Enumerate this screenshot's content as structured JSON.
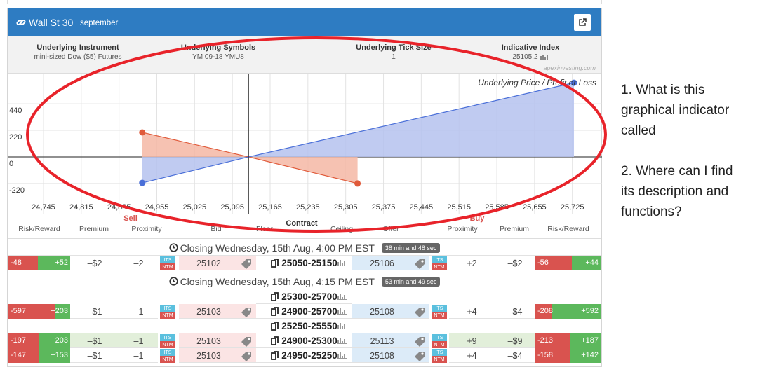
{
  "header": {
    "title": "Wall St 30",
    "subtitle": "september"
  },
  "info": [
    {
      "label": "Underlying Instrument",
      "value": "mini-sized Dow ($5) Futures"
    },
    {
      "label": "Underlying Symbols",
      "value": "YM 09-18 YMU8"
    },
    {
      "label": "Underlying Tick Size",
      "value": "1"
    },
    {
      "label": "Indicative Index",
      "value": "25105.2"
    }
  ],
  "watermark": "apexinvesting.com",
  "chart_data": {
    "type": "line",
    "title": "Underlying Price / Profit or Loss",
    "series": [
      {
        "color": "#e05a3a",
        "fill": "#f4b7a4",
        "x": [
          24928,
          25125,
          25327
        ],
        "values": [
          203,
          0,
          -220
        ]
      },
      {
        "color": "#4a6fd8",
        "fill": "#b5c2ee",
        "x": [
          24928,
          25125,
          25728
        ],
        "values": [
          -215,
          0,
          614
        ]
      }
    ],
    "xlim": [
      24680,
      25780
    ],
    "ylim": [
      -470,
      690
    ],
    "xticks": [
      {
        "value": 24745,
        "label": "24,745"
      },
      {
        "value": 24815,
        "label": "24,815"
      },
      {
        "value": 24885,
        "label": "24,885"
      },
      {
        "value": 24955,
        "label": "24,955"
      },
      {
        "value": 25025,
        "label": "25,025"
      },
      {
        "value": 25095,
        "label": "25,095"
      },
      {
        "value": 25165,
        "label": "25,165"
      },
      {
        "value": 25235,
        "label": "25,235"
      },
      {
        "value": 25305,
        "label": "25,305"
      },
      {
        "value": 25375,
        "label": "25,375"
      },
      {
        "value": 25445,
        "label": "25,445"
      },
      {
        "value": 25515,
        "label": "25,515"
      },
      {
        "value": 25585,
        "label": "25,585"
      },
      {
        "value": 25655,
        "label": "25,655"
      },
      {
        "value": 25725,
        "label": "25,725"
      }
    ],
    "yticks": [
      -220,
      0,
      220,
      440
    ],
    "grid": true
  },
  "table": {
    "groups": {
      "sell": "Sell",
      "contract": "Contract",
      "buy": "Buy"
    },
    "columns": [
      "Risk/Reward",
      "Premium",
      "Proximity",
      "Bid",
      "Floor",
      "Ceiling",
      "Offer",
      "Proximity",
      "Premium",
      "Risk/Reward"
    ],
    "badges": [
      "ITS",
      "NTM"
    ],
    "sections": [
      {
        "closing": "Closing Wednesday, 15th Aug, 4:00 PM EST",
        "countdown": "38 min and 48 sec",
        "rows": [
          {
            "sell_risk": "-48",
            "sell_reward": "+52",
            "sell_premium": "–$2",
            "sell_proximity": "–2",
            "bid": "25102",
            "contract": "25050-25150",
            "offer": "25106",
            "buy_proximity": "+2",
            "buy_premium": "–$2",
            "buy_risk": "-56",
            "buy_reward": "+44"
          }
        ]
      },
      {
        "closing": "Closing Wednesday, 15th Aug, 4:15 PM EST",
        "countdown": "53 min and 49 sec",
        "rows": [
          {
            "contract": "25300-25700"
          },
          {
            "sell_risk": "-597",
            "sell_reward": "+203",
            "sell_premium": "–$1",
            "sell_proximity": "–1",
            "bid": "25103",
            "contract": "24900-25700",
            "offer": "25108",
            "buy_proximity": "+4",
            "buy_premium": "–$4",
            "buy_risk": "-208",
            "buy_reward": "+592"
          },
          {
            "contract": "25250-25550"
          },
          {
            "sell_risk": "-197",
            "sell_reward": "+203",
            "sell_premium": "–$1",
            "sell_proximity": "–1",
            "bid": "25103",
            "contract": "24900-25300",
            "offer": "25113",
            "buy_proximity": "+9",
            "buy_premium": "–$9",
            "buy_risk": "-213",
            "buy_reward": "+187"
          },
          {
            "sell_risk": "-147",
            "sell_reward": "+153",
            "sell_premium": "–$1",
            "sell_proximity": "–1",
            "bid": "25103",
            "contract": "24950-25250",
            "offer": "25108",
            "buy_proximity": "+4",
            "buy_premium": "–$4",
            "buy_risk": "-158",
            "buy_reward": "+142"
          }
        ]
      }
    ]
  },
  "question": {
    "lines": [
      "1. What is this",
      "graphical indicator",
      "called",
      "2. Where can I find",
      "its description and",
      "functions?"
    ]
  }
}
